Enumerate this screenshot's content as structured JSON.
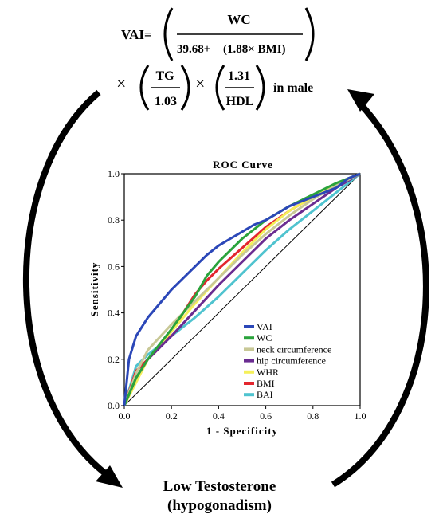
{
  "formula": {
    "lhs": "VAI=",
    "frac1_num": "WC",
    "frac1_den_a": "39.68+",
    "frac1_den_b": "(1.88× BMI)",
    "times": "×",
    "frac2_num": "TG",
    "frac2_den": "1.03",
    "frac3_num": "1.31",
    "frac3_den": "HDL",
    "suffix": "in male"
  },
  "outcome": {
    "line1": "Low  Testosterone",
    "line2": "(hypogonadism)"
  },
  "colors": {
    "VAI": "#2b47b8",
    "WC": "#2aa33c",
    "neck": "#c8c896",
    "hip": "#6a2c91",
    "WHR": "#f5f05a",
    "BMI": "#e3262e",
    "BAI": "#4fc3cf",
    "diagonal": "#000000",
    "arrows": "#000000"
  },
  "chart_data": {
    "type": "line",
    "title": "ROC Curve",
    "xlabel": "1 - Specificity",
    "ylabel": "Sensitivity",
    "xlim": [
      0,
      1
    ],
    "ylim": [
      0,
      1
    ],
    "xticks": [
      "0.0",
      "0.2",
      "0.4",
      "0.6",
      "0.8",
      "1.0"
    ],
    "yticks": [
      "0.0",
      "0.2",
      "0.4",
      "0.6",
      "0.8",
      "1.0"
    ],
    "legend_position": "bottom-right",
    "reference_line": {
      "x": [
        0,
        1
      ],
      "y": [
        0,
        1
      ]
    },
    "series": [
      {
        "name": "VAI",
        "color": "#2b47b8",
        "x": [
          0,
          0.02,
          0.05,
          0.1,
          0.15,
          0.2,
          0.25,
          0.3,
          0.35,
          0.4,
          0.45,
          0.5,
          0.55,
          0.6,
          0.65,
          0.7,
          0.8,
          0.9,
          0.95,
          1.0
        ],
        "y": [
          0,
          0.2,
          0.3,
          0.38,
          0.44,
          0.5,
          0.55,
          0.6,
          0.65,
          0.69,
          0.72,
          0.75,
          0.78,
          0.8,
          0.83,
          0.86,
          0.9,
          0.94,
          0.98,
          1.0
        ]
      },
      {
        "name": "WC",
        "color": "#2aa33c",
        "x": [
          0,
          0.05,
          0.1,
          0.2,
          0.3,
          0.35,
          0.4,
          0.5,
          0.6,
          0.7,
          0.8,
          0.9,
          1.0
        ],
        "y": [
          0,
          0.12,
          0.2,
          0.33,
          0.47,
          0.56,
          0.62,
          0.72,
          0.8,
          0.86,
          0.91,
          0.96,
          1.0
        ]
      },
      {
        "name": "neck circumference",
        "color": "#c8c896",
        "x": [
          0,
          0.05,
          0.1,
          0.2,
          0.3,
          0.4,
          0.5,
          0.6,
          0.7,
          0.8,
          0.9,
          1.0
        ],
        "y": [
          0,
          0.14,
          0.24,
          0.35,
          0.45,
          0.55,
          0.65,
          0.74,
          0.82,
          0.89,
          0.95,
          1.0
        ]
      },
      {
        "name": "hip circumference",
        "color": "#6a2c91",
        "x": [
          0,
          0.05,
          0.1,
          0.2,
          0.3,
          0.4,
          0.5,
          0.6,
          0.7,
          0.8,
          0.9,
          1.0
        ],
        "y": [
          0,
          0.12,
          0.2,
          0.3,
          0.41,
          0.52,
          0.62,
          0.72,
          0.8,
          0.87,
          0.94,
          1.0
        ]
      },
      {
        "name": "WHR",
        "color": "#f5f05a",
        "x": [
          0,
          0.05,
          0.1,
          0.2,
          0.3,
          0.4,
          0.5,
          0.6,
          0.7,
          0.8,
          0.9,
          1.0
        ],
        "y": [
          0,
          0.1,
          0.2,
          0.32,
          0.44,
          0.55,
          0.66,
          0.76,
          0.84,
          0.9,
          0.95,
          1.0
        ]
      },
      {
        "name": "BMI",
        "color": "#e3262e",
        "x": [
          0,
          0.05,
          0.1,
          0.15,
          0.2,
          0.25,
          0.3,
          0.35,
          0.4,
          0.5,
          0.6,
          0.7,
          0.8,
          0.9,
          1.0
        ],
        "y": [
          0,
          0.15,
          0.2,
          0.25,
          0.32,
          0.4,
          0.48,
          0.54,
          0.59,
          0.68,
          0.77,
          0.84,
          0.9,
          0.95,
          1.0
        ]
      },
      {
        "name": "BAI",
        "color": "#4fc3cf",
        "x": [
          0,
          0.05,
          0.1,
          0.2,
          0.3,
          0.4,
          0.5,
          0.6,
          0.7,
          0.8,
          0.9,
          1.0
        ],
        "y": [
          0,
          0.17,
          0.22,
          0.3,
          0.38,
          0.47,
          0.57,
          0.67,
          0.76,
          0.84,
          0.92,
          1.0
        ]
      }
    ]
  }
}
